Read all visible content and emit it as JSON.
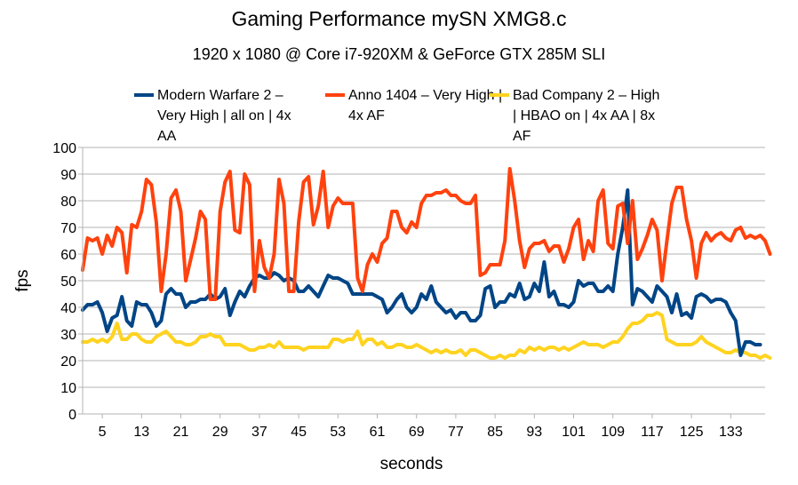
{
  "chart_data": {
    "type": "line",
    "title": "Gaming Performance mySN XMG8.c",
    "subtitle": "1920 x 1080 @ Core i7-920XM & GeForce GTX 285M SLI",
    "xlabel": "seconds",
    "ylabel": "fps",
    "xlim": [
      1,
      140
    ],
    "ylim": [
      0,
      100
    ],
    "yticks": [
      0,
      10,
      20,
      30,
      40,
      50,
      60,
      70,
      80,
      90,
      100
    ],
    "xticks": [
      5,
      13,
      21,
      29,
      37,
      45,
      53,
      61,
      69,
      77,
      85,
      93,
      101,
      109,
      117,
      125,
      133
    ],
    "grid": true,
    "legend": "top",
    "series": [
      {
        "name": "Modern Warfare 2 – Very High | all on | 4x AA",
        "color": "#004586",
        "values": [
          39,
          41,
          41,
          42,
          38,
          31,
          36,
          37,
          44,
          35,
          33,
          42,
          41,
          41,
          38,
          33,
          35,
          45,
          47,
          45,
          45,
          40,
          42,
          42,
          43,
          43,
          45,
          43,
          44,
          47,
          37,
          42,
          46,
          44,
          48,
          51,
          52,
          51,
          51,
          53,
          52,
          50,
          51,
          50,
          46,
          46,
          48,
          46,
          44,
          48,
          52,
          51,
          51,
          50,
          49,
          45,
          45,
          45,
          45,
          45,
          44,
          43,
          38,
          40,
          43,
          45,
          40,
          38,
          40,
          45,
          43,
          48,
          42,
          40,
          38,
          39,
          36,
          38,
          38,
          35,
          35,
          37,
          47,
          48,
          40,
          42,
          42,
          45,
          44,
          49,
          43,
          44,
          49,
          46,
          57,
          44,
          46,
          41,
          41,
          40,
          42,
          50,
          48,
          49,
          49,
          46,
          46,
          48,
          46,
          60,
          70,
          84,
          41,
          47,
          46,
          44,
          42,
          48,
          46,
          44,
          38,
          45,
          37,
          38,
          36,
          44,
          45,
          44,
          42,
          43,
          43,
          42,
          38,
          35,
          22,
          27,
          27,
          26,
          26
        ]
      },
      {
        "name": "Anno 1404 – Very High | 4x AF",
        "color": "#ff420e",
        "values": [
          54,
          66,
          65,
          66,
          60,
          67,
          63,
          70,
          68,
          53,
          71,
          70,
          76,
          88,
          86,
          72,
          46,
          60,
          81,
          84,
          76,
          50,
          58,
          66,
          76,
          73,
          43,
          43,
          76,
          87,
          91,
          69,
          68,
          90,
          86,
          46,
          65,
          55,
          51,
          60,
          88,
          79,
          46,
          46,
          72,
          87,
          89,
          71,
          78,
          91,
          70,
          78,
          81,
          79,
          79,
          79,
          51,
          46,
          56,
          60,
          57,
          64,
          66,
          76,
          76,
          70,
          68,
          72,
          70,
          79,
          82,
          82,
          83,
          83,
          84,
          82,
          82,
          80,
          79,
          79,
          82,
          52,
          53,
          56,
          56,
          56,
          65,
          92,
          80,
          65,
          55,
          62,
          64,
          64,
          65,
          61,
          63,
          63,
          57,
          62,
          70,
          73,
          58,
          65,
          61,
          80,
          84,
          64,
          62,
          78,
          79,
          64,
          80,
          58,
          62,
          67,
          73,
          69,
          50,
          65,
          79,
          85,
          85,
          73,
          65,
          51,
          64,
          68,
          65,
          67,
          68,
          66,
          65,
          69,
          70,
          66,
          67,
          66,
          67,
          65,
          60
        ]
      },
      {
        "name": "Bad Company 2 – High | HBAO on | 4x AA | 8x AF",
        "color": "#ffd320",
        "values": [
          27,
          27,
          28,
          27,
          28,
          27,
          29,
          34,
          28,
          28,
          30,
          30,
          28,
          27,
          27,
          29,
          30,
          31,
          29,
          27,
          27,
          26,
          26,
          27,
          29,
          29,
          30,
          29,
          29,
          26,
          26,
          26,
          26,
          25,
          24,
          24,
          25,
          25,
          26,
          25,
          27,
          25,
          25,
          25,
          25,
          24,
          25,
          25,
          25,
          25,
          25,
          28,
          28,
          27,
          28,
          28,
          31,
          26,
          28,
          28,
          26,
          27,
          25,
          25,
          26,
          26,
          25,
          25,
          26,
          25,
          24,
          23,
          24,
          23,
          24,
          23,
          23,
          24,
          22,
          24,
          24,
          23,
          22,
          21,
          21,
          22,
          21,
          22,
          22,
          24,
          23,
          25,
          24,
          25,
          24,
          25,
          25,
          24,
          25,
          24,
          25,
          26,
          27,
          26,
          26,
          26,
          25,
          26,
          27,
          27,
          29,
          32,
          34,
          34,
          35,
          37,
          37,
          38,
          37,
          28,
          27,
          26,
          26,
          26,
          26,
          27,
          29,
          27,
          26,
          25,
          24,
          23,
          23,
          24,
          23,
          23,
          22,
          22,
          21,
          22,
          21
        ]
      }
    ]
  }
}
